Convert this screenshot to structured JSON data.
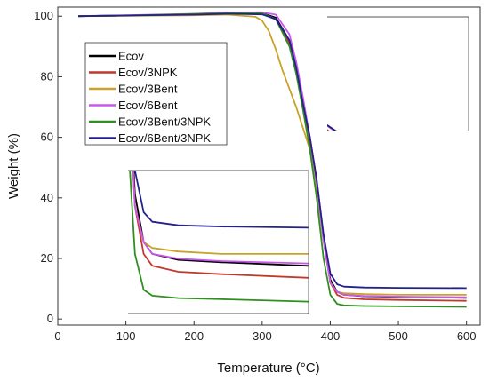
{
  "chart_data": {
    "type": "line",
    "xlabel": "Temperature (°C)",
    "ylabel": "Weight (%)",
    "xlim": [
      0,
      620
    ],
    "ylim": [
      -2,
      103
    ],
    "x_ticks": [
      0,
      100,
      200,
      300,
      400,
      500,
      600
    ],
    "y_ticks": [
      0,
      20,
      40,
      60,
      80,
      100
    ],
    "grid": false,
    "legend_position": "upper-left",
    "series": [
      {
        "name": "Ecov",
        "color": "#000000",
        "points": [
          [
            30,
            100
          ],
          [
            100,
            100.2
          ],
          [
            200,
            100.6
          ],
          [
            250,
            101
          ],
          [
            300,
            101
          ],
          [
            320,
            99.5
          ],
          [
            340,
            92
          ],
          [
            350,
            83
          ],
          [
            360,
            71
          ],
          [
            370,
            60
          ],
          [
            380,
            46
          ],
          [
            390,
            27
          ],
          [
            400,
            13
          ],
          [
            410,
            9
          ],
          [
            420,
            8
          ],
          [
            450,
            7.5
          ],
          [
            500,
            7.3
          ],
          [
            600,
            7
          ]
        ]
      },
      {
        "name": "Ecov/3NPK",
        "color": "#c0392b",
        "points": [
          [
            30,
            100
          ],
          [
            100,
            100.2
          ],
          [
            200,
            100.6
          ],
          [
            250,
            101
          ],
          [
            300,
            100.8
          ],
          [
            320,
            99
          ],
          [
            340,
            91
          ],
          [
            350,
            82
          ],
          [
            360,
            70
          ],
          [
            370,
            58
          ],
          [
            380,
            44
          ],
          [
            390,
            26
          ],
          [
            400,
            12
          ],
          [
            410,
            8
          ],
          [
            420,
            7
          ],
          [
            450,
            6.5
          ],
          [
            500,
            6.3
          ],
          [
            600,
            6
          ]
        ]
      },
      {
        "name": "Ecov/3Bent",
        "color": "#c9a227",
        "points": [
          [
            30,
            100
          ],
          [
            100,
            100.1
          ],
          [
            200,
            100.3
          ],
          [
            250,
            100.5
          ],
          [
            290,
            99.8
          ],
          [
            300,
            98.5
          ],
          [
            310,
            95
          ],
          [
            320,
            89
          ],
          [
            330,
            82
          ],
          [
            340,
            76
          ],
          [
            350,
            70
          ],
          [
            360,
            63
          ],
          [
            370,
            56
          ],
          [
            380,
            43
          ],
          [
            390,
            26
          ],
          [
            400,
            12
          ],
          [
            410,
            9
          ],
          [
            420,
            8.5
          ],
          [
            450,
            8.2
          ],
          [
            500,
            8
          ],
          [
            600,
            8
          ]
        ]
      },
      {
        "name": "Ecov/6Bent",
        "color": "#cc55ee",
        "points": [
          [
            30,
            100
          ],
          [
            100,
            100.3
          ],
          [
            200,
            100.8
          ],
          [
            250,
            101.2
          ],
          [
            300,
            101.3
          ],
          [
            320,
            100.5
          ],
          [
            340,
            94
          ],
          [
            350,
            85
          ],
          [
            360,
            73
          ],
          [
            370,
            60
          ],
          [
            380,
            45
          ],
          [
            390,
            26
          ],
          [
            400,
            12
          ],
          [
            410,
            9
          ],
          [
            420,
            8
          ],
          [
            450,
            7.6
          ],
          [
            500,
            7.4
          ],
          [
            600,
            7.2
          ]
        ]
      },
      {
        "name": "Ecov/3Bent/3NPK",
        "color": "#2f8f1f",
        "points": [
          [
            30,
            100
          ],
          [
            100,
            100.2
          ],
          [
            200,
            100.7
          ],
          [
            250,
            101
          ],
          [
            300,
            101
          ],
          [
            320,
            99
          ],
          [
            340,
            90
          ],
          [
            350,
            81
          ],
          [
            360,
            69
          ],
          [
            370,
            56
          ],
          [
            380,
            40
          ],
          [
            390,
            20
          ],
          [
            400,
            8
          ],
          [
            410,
            5
          ],
          [
            420,
            4.5
          ],
          [
            450,
            4.3
          ],
          [
            500,
            4.2
          ],
          [
            600,
            4
          ]
        ]
      },
      {
        "name": "Ecov/6Bent/3NPK",
        "color": "#22228a",
        "points": [
          [
            30,
            100
          ],
          [
            100,
            100.2
          ],
          [
            200,
            100.5
          ],
          [
            250,
            100.8
          ],
          [
            300,
            100.6
          ],
          [
            320,
            99
          ],
          [
            340,
            92
          ],
          [
            350,
            83
          ],
          [
            360,
            71
          ],
          [
            370,
            60
          ],
          [
            380,
            46
          ],
          [
            390,
            28
          ],
          [
            400,
            15
          ],
          [
            410,
            11.5
          ],
          [
            420,
            10.7
          ],
          [
            450,
            10.4
          ],
          [
            500,
            10.3
          ],
          [
            600,
            10.2
          ]
        ]
      }
    ],
    "insets": [
      {
        "id": "inset-top-right",
        "xlim": [
          372,
          400
        ],
        "ylim": [
          55,
          102
        ]
      },
      {
        "id": "inset-lower-middle",
        "xlim": [
          392,
          600
        ],
        "ylim": [
          3,
          15
        ]
      }
    ]
  }
}
